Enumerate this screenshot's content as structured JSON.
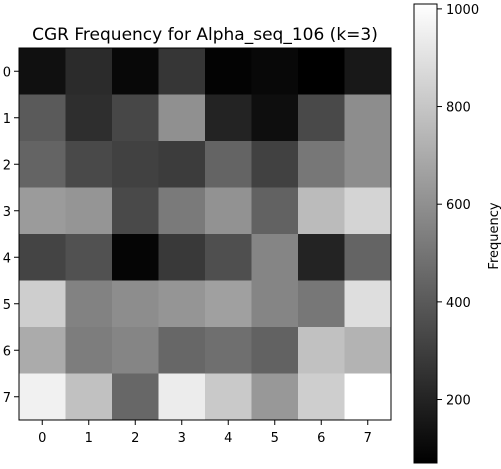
{
  "chart_data": {
    "type": "heatmap",
    "title": "CGR Frequency for Alpha_seq_106 (k=3)",
    "x_ticks": [
      "0",
      "1",
      "2",
      "3",
      "4",
      "5",
      "6",
      "7"
    ],
    "y_ticks": [
      "0",
      "1",
      "2",
      "3",
      "4",
      "5",
      "6",
      "7"
    ],
    "values": [
      [
        130,
        230,
        100,
        270,
        80,
        100,
        70,
        160
      ],
      [
        400,
        240,
        330,
        600,
        200,
        120,
        340,
        590
      ],
      [
        440,
        340,
        310,
        290,
        440,
        310,
        510,
        590
      ],
      [
        640,
        620,
        340,
        520,
        610,
        430,
        760,
        850
      ],
      [
        320,
        370,
        90,
        280,
        360,
        560,
        200,
        440
      ],
      [
        830,
        550,
        590,
        620,
        660,
        560,
        510,
        890
      ],
      [
        700,
        530,
        560,
        450,
        480,
        430,
        780,
        730
      ],
      [
        960,
        780,
        450,
        940,
        810,
        630,
        830,
        1010
      ]
    ],
    "colormap": "gray",
    "colorbar": {
      "label": "Frequency",
      "min": 70,
      "max": 1010,
      "ticks": [
        200,
        400,
        600,
        800,
        1000
      ]
    },
    "grid": false
  }
}
